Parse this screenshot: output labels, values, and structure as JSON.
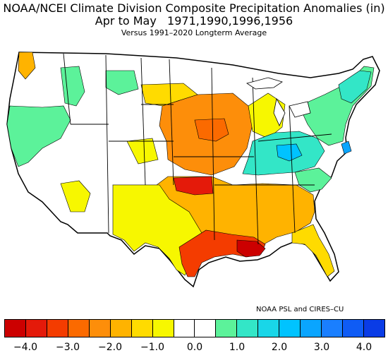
{
  "title": {
    "line1": "NOAA/NCEI Climate Division Composite Precipitation Anomalies (in)",
    "line2": "Apr to May   1971,1990,1996,1956",
    "line3": "Versus 1991–2020 Longterm Average"
  },
  "credit": "NOAA PSL and CIRES–CU",
  "legend": {
    "colors": [
      "#cc0000",
      "#e41a0a",
      "#f43c00",
      "#fb6a00",
      "#fd8e0a",
      "#ffb300",
      "#ffdb00",
      "#f7f700",
      "#ffffff",
      "#ffffff",
      "#5cf29a",
      "#33e6c7",
      "#19d6e8",
      "#00c3ff",
      "#0aa5ff",
      "#1a7fff",
      "#0f5cf5",
      "#0a3ce6"
    ],
    "ticks": [
      "−4.0",
      "−3.0",
      "−2.0",
      "−1.0",
      "0.0",
      "1.0",
      "2.0",
      "3.0",
      "4.0"
    ]
  },
  "map": {
    "outline_color": "#000000",
    "anomaly_colors": {
      "strong_dry": "#e41a0a",
      "dry": "#fd8e0a",
      "moderate_dry": "#ffb300",
      "slight_dry": "#f7f700",
      "near_normal": "#ffffff",
      "slight_wet": "#5cf29a",
      "wet": "#33e6c7",
      "very_wet": "#19d6e8",
      "strong_wet": "#0aa5ff"
    }
  }
}
